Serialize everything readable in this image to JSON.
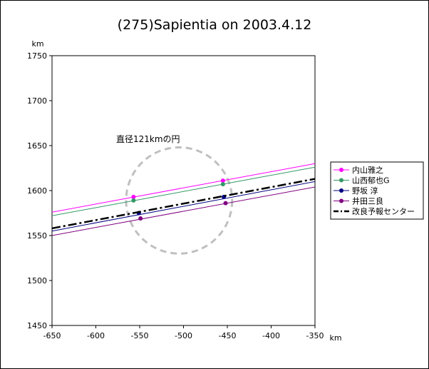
{
  "chart_data": {
    "type": "line",
    "title": "(275)Sapientia on 2003.4.12",
    "xlabel": "km",
    "ylabel": "km",
    "xlim": [
      -650,
      -350
    ],
    "ylim": [
      1450,
      1750
    ],
    "x_ticks": [
      -650,
      -600,
      -550,
      -500,
      -450,
      -400,
      -350
    ],
    "y_ticks": [
      1450,
      1500,
      1550,
      1600,
      1650,
      1700,
      1750
    ],
    "annotation": "直径121kmの円",
    "circle": {
      "center": [
        -505,
        1589
      ],
      "diameter_km": 121,
      "color": "#c0c0c0"
    },
    "series": [
      {
        "name": "内山雅之",
        "color": "#ff00ff",
        "style": "solid",
        "line": [
          [
            -650,
            1576
          ],
          [
            -350,
            1630
          ]
        ],
        "points": [
          [
            -557,
            1593
          ],
          [
            -455,
            1611
          ]
        ]
      },
      {
        "name": "山西郁也G",
        "color": "#339966",
        "style": "solid",
        "line": [
          [
            -650,
            1572
          ],
          [
            -350,
            1626
          ]
        ],
        "points": [
          [
            -557,
            1589
          ],
          [
            -455,
            1607
          ]
        ]
      },
      {
        "name": "野坂 淳",
        "color": "#000080",
        "style": "solid",
        "line": [
          [
            -650,
            1555
          ],
          [
            -350,
            1610
          ]
        ],
        "points": [
          [
            -551,
            1575
          ],
          [
            -454,
            1593
          ]
        ]
      },
      {
        "name": "井田三良",
        "color": "#800080",
        "style": "solid",
        "line": [
          [
            -650,
            1550
          ],
          [
            -350,
            1604
          ]
        ],
        "points": [
          [
            -549,
            1569
          ],
          [
            -452,
            1586
          ]
        ]
      },
      {
        "name": "改良予報センター",
        "color": "#000000",
        "style": "dashdot",
        "line": [
          [
            -650,
            1558
          ],
          [
            -350,
            1613
          ]
        ],
        "points": []
      }
    ]
  }
}
